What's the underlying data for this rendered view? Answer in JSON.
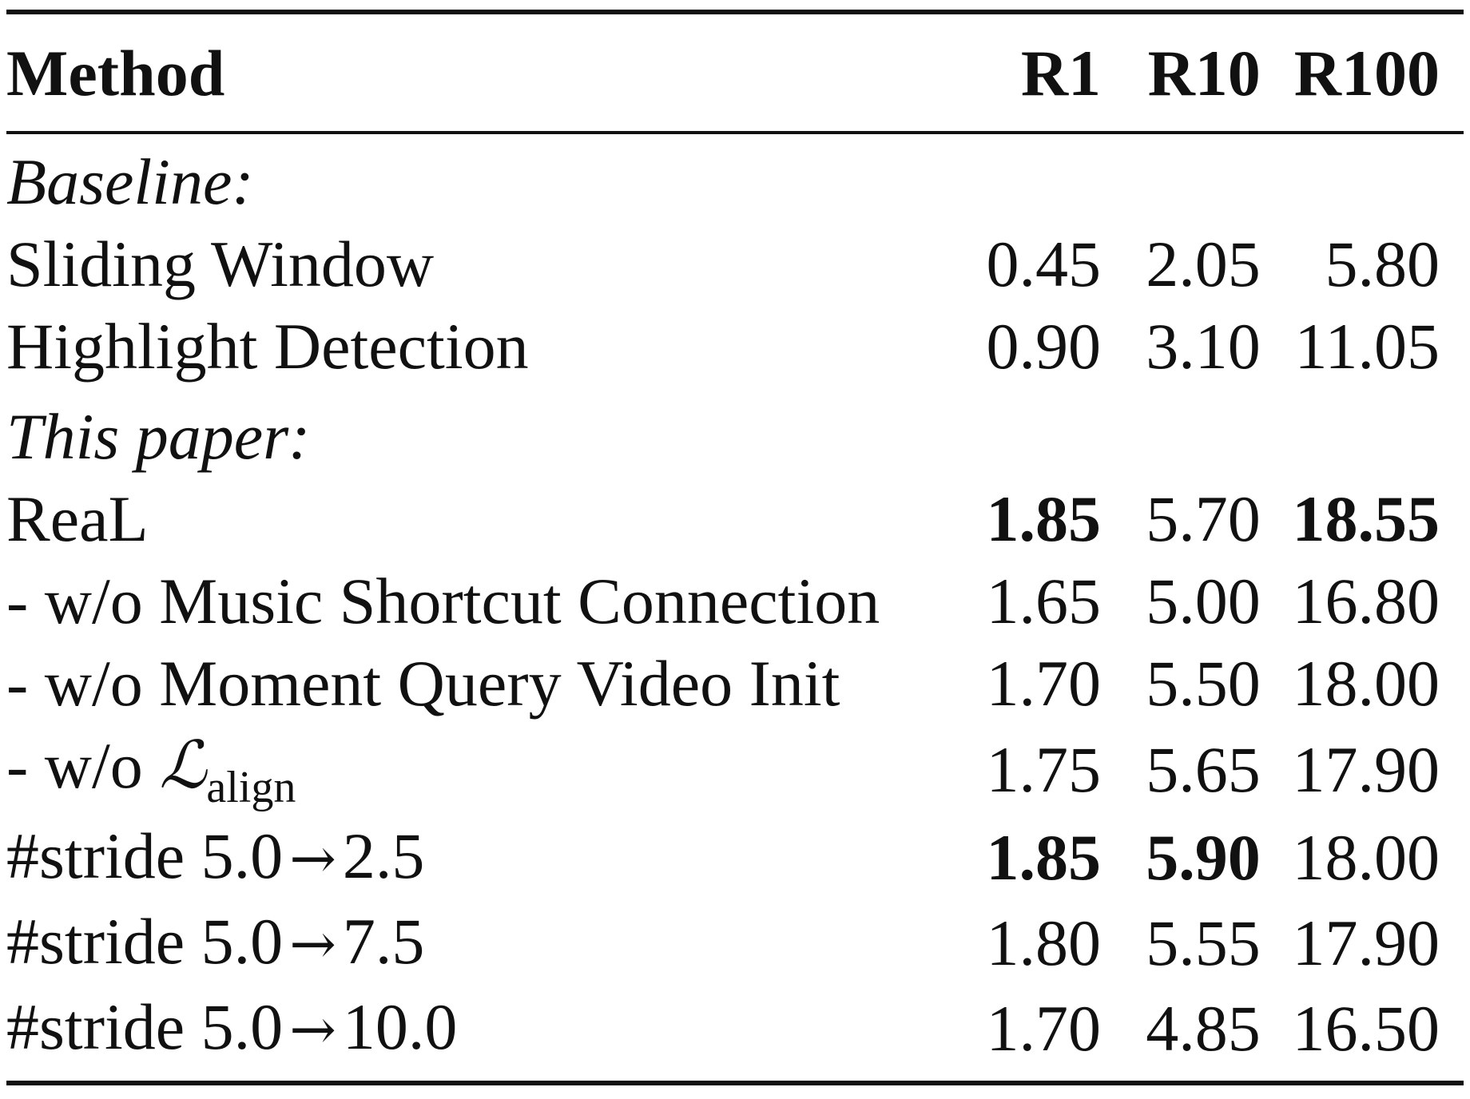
{
  "table": {
    "headers": {
      "method": "Method",
      "r1": "R1",
      "r10": "R10",
      "r100": "R100"
    },
    "sections": [
      {
        "title": "Baseline:",
        "rows": [
          {
            "method": "Sliding Window",
            "r1": "0.45",
            "r10": "2.05",
            "r100": "5.80"
          },
          {
            "method": "Highlight Detection",
            "r1": "0.90",
            "r10": "3.10",
            "r100": "11.05"
          }
        ]
      },
      {
        "title": "This paper:",
        "rows": [
          {
            "method": "ReaL",
            "r1": "1.85",
            "r10": "5.70",
            "r100": "18.55"
          },
          {
            "method": "- w/o Music Shortcut Connection",
            "r1": "1.65",
            "r10": "5.00",
            "r100": "16.80"
          },
          {
            "method": "- w/o Moment Query Video Init",
            "r1": "1.70",
            "r10": "5.50",
            "r100": "18.00"
          },
          {
            "method_prefix": "- w/o ",
            "method_symbol": "ℒ",
            "method_subscript": "align",
            "r1": "1.75",
            "r10": "5.65",
            "r100": "17.90"
          },
          {
            "method_prefix": "#stride 5.0",
            "method_arrow": "→",
            "method_suffix": "2.5",
            "r1": "1.85",
            "r10": "5.90",
            "r100": "18.00"
          },
          {
            "method_prefix": "#stride 5.0",
            "method_arrow": "→",
            "method_suffix": "7.5",
            "r1": "1.80",
            "r10": "5.55",
            "r100": "17.90"
          },
          {
            "method_prefix": "#stride 5.0",
            "method_arrow": "→",
            "method_suffix": "10.0",
            "r1": "1.70",
            "r10": "4.85",
            "r100": "16.50"
          }
        ]
      }
    ]
  }
}
